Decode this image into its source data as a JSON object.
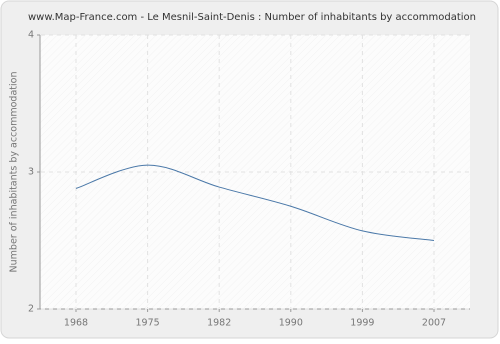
{
  "chart_data": {
    "type": "line",
    "title": "www.Map-France.com - Le Mesnil-Saint-Denis : Number of inhabitants by accommodation",
    "y_label": "Number of inhabitants by accommodation",
    "categories": [
      "1968",
      "1975",
      "1982",
      "1990",
      "1999",
      "2007"
    ],
    "series": [
      {
        "name": "Number of inhabitants by accommodation",
        "color": "#4a78a8",
        "values": [
          2.88,
          3.05,
          2.89,
          2.75,
          2.57,
          2.5
        ]
      }
    ],
    "ylim": [
      2,
      4
    ],
    "yticks": [
      2,
      3,
      4
    ],
    "grid": true
  }
}
